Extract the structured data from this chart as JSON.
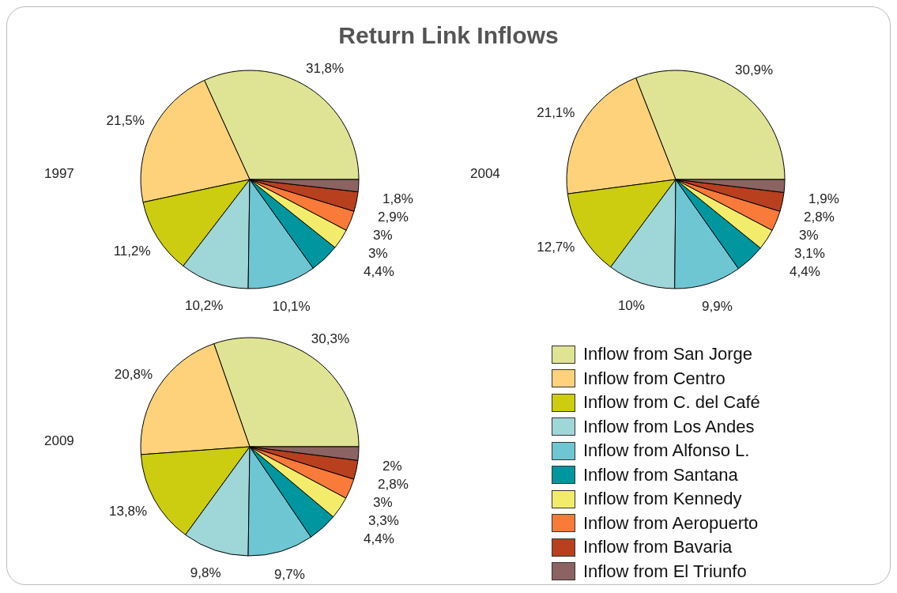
{
  "chart_data": [
    {
      "type": "pie",
      "title": "Return Link Inflows",
      "ylabel": "1997",
      "values": [
        31.8,
        21.5,
        11.2,
        10.2,
        10.1,
        4.4,
        3,
        3,
        2.9,
        1.8
      ],
      "value_labels": [
        "31,8%",
        "21,5%",
        "11,2%",
        "10,2%",
        "10,1%",
        "4,4%",
        "3%",
        "3%",
        "2,9%",
        "1,8%"
      ],
      "colors": [
        "#dfe394",
        "#fdd27a",
        "#cccd10",
        "#9fd6d8",
        "#6ec6d3",
        "#00969f",
        "#f2ec6a",
        "#fa7a3a",
        "#b8401e",
        "#8a6362"
      ],
      "legend": false
    },
    {
      "type": "pie",
      "ylabel": "2004",
      "values": [
        30.9,
        21.1,
        12.7,
        10,
        9.9,
        4.4,
        3.1,
        3,
        2.8,
        1.9
      ],
      "value_labels": [
        "30,9%",
        "21,1%",
        "12,7%",
        "10%",
        "9,9%",
        "4,4%",
        "3,1%",
        "3%",
        "2,8%",
        "1,9%"
      ],
      "colors": [
        "#dfe394",
        "#fdd27a",
        "#cccd10",
        "#9fd6d8",
        "#6ec6d3",
        "#00969f",
        "#f2ec6a",
        "#fa7a3a",
        "#b8401e",
        "#8a6362"
      ],
      "legend": false
    },
    {
      "type": "pie",
      "ylabel": "2009",
      "categories": [
        "Inflow from San Jorge",
        "Inflow from Centro",
        "Inflow from C. del Café",
        "Inflow from Los Andes",
        "Inflow from Alfonso L.",
        "Inflow from Santana",
        "Inflow from Kennedy",
        "Inflow from Aeropuerto",
        "Inflow from Bavaria",
        "Inflow from El Triunfo"
      ],
      "values": [
        30.3,
        20.8,
        13.8,
        9.8,
        9.7,
        4.4,
        3.3,
        3,
        2.8,
        2
      ],
      "value_labels": [
        "30,3%",
        "20,8%",
        "13,8%",
        "9,8%",
        "9,7%",
        "4,4%",
        "3,3%",
        "3%",
        "2,8%",
        "2%"
      ],
      "colors": [
        "#dfe394",
        "#fdd27a",
        "#cccd10",
        "#9fd6d8",
        "#6ec6d3",
        "#00969f",
        "#f2ec6a",
        "#fa7a3a",
        "#b8401e",
        "#8a6362"
      ],
      "legend": "right"
    }
  ]
}
